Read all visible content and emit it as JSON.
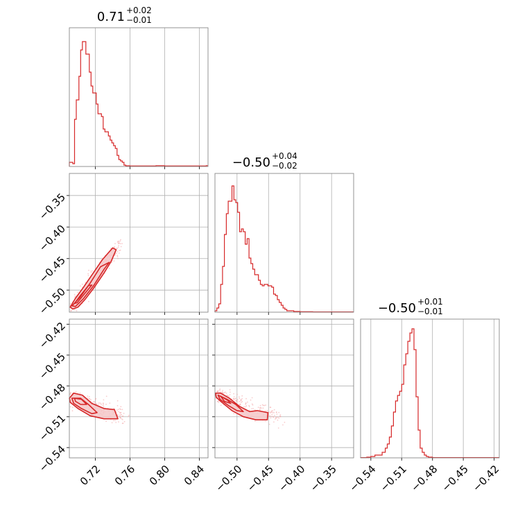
{
  "colors": {
    "accent": "#d62728",
    "fill": "#f4c7c8",
    "scatter": "#f2a3a4",
    "grid": "#b0b0b0",
    "frame": "#888888"
  },
  "chart_data": {
    "type": "corner",
    "parameters": [
      {
        "median": "0.71",
        "plus": "+0.02",
        "minus": "−0.01",
        "range": [
          0.69,
          0.85
        ]
      },
      {
        "median": "−0.50",
        "plus": "+0.04",
        "minus": "−0.02",
        "range": [
          -0.535,
          -0.315
        ]
      },
      {
        "median": "−0.50",
        "plus": "+0.01",
        "minus": "−0.01",
        "range": [
          -0.55,
          -0.415
        ]
      }
    ],
    "ticks": {
      "p0": [
        "0.72",
        "0.76",
        "0.80",
        "0.84"
      ],
      "p1": [
        "−0.50",
        "−0.45",
        "−0.40",
        "−0.35"
      ],
      "p2": [
        "−0.54",
        "−0.51",
        "−0.48",
        "−0.45",
        "−0.42"
      ]
    },
    "tick_values": {
      "p0": [
        0.72,
        0.76,
        0.8,
        0.84
      ],
      "p1": [
        -0.5,
        -0.45,
        -0.4,
        -0.35
      ],
      "p2": [
        -0.54,
        -0.51,
        -0.48,
        -0.45,
        -0.42
      ]
    },
    "histograms": {
      "p0": [
        [
          0.69,
          0.03
        ],
        [
          0.694,
          0.02
        ],
        [
          0.696,
          0.34
        ],
        [
          0.698,
          0.48
        ],
        [
          0.701,
          0.65
        ],
        [
          0.703,
          0.84
        ],
        [
          0.705,
          0.9
        ],
        [
          0.707,
          0.9
        ],
        [
          0.709,
          0.81
        ],
        [
          0.711,
          0.81
        ],
        [
          0.713,
          0.68
        ],
        [
          0.715,
          0.58
        ],
        [
          0.717,
          0.53
        ],
        [
          0.719,
          0.53
        ],
        [
          0.721,
          0.45
        ],
        [
          0.723,
          0.38
        ],
        [
          0.725,
          0.38
        ],
        [
          0.727,
          0.36
        ],
        [
          0.729,
          0.27
        ],
        [
          0.731,
          0.25
        ],
        [
          0.733,
          0.25
        ],
        [
          0.735,
          0.22
        ],
        [
          0.737,
          0.19
        ],
        [
          0.739,
          0.17
        ],
        [
          0.741,
          0.15
        ],
        [
          0.743,
          0.13
        ],
        [
          0.745,
          0.08
        ],
        [
          0.747,
          0.05
        ],
        [
          0.749,
          0.04
        ],
        [
          0.751,
          0.03
        ],
        [
          0.753,
          0.01
        ],
        [
          0.755,
          0.005
        ],
        [
          0.76,
          0.004
        ],
        [
          0.77,
          0.004
        ],
        [
          0.78,
          0.004
        ],
        [
          0.79,
          0.006
        ],
        [
          0.8,
          0.004
        ],
        [
          0.81,
          0.004
        ],
        [
          0.82,
          0.004
        ],
        [
          0.83,
          0.004
        ],
        [
          0.84,
          0.004
        ],
        [
          0.848,
          0.006
        ]
      ],
      "p1": [
        [
          -0.535,
          0.01
        ],
        [
          -0.532,
          0.03
        ],
        [
          -0.529,
          0.06
        ],
        [
          -0.526,
          0.2
        ],
        [
          -0.523,
          0.33
        ],
        [
          -0.52,
          0.56
        ],
        [
          -0.517,
          0.71
        ],
        [
          -0.514,
          0.8
        ],
        [
          -0.511,
          0.8
        ],
        [
          -0.508,
          0.91
        ],
        [
          -0.505,
          0.81
        ],
        [
          -0.502,
          0.79
        ],
        [
          -0.499,
          0.72
        ],
        [
          -0.496,
          0.58
        ],
        [
          -0.493,
          0.6
        ],
        [
          -0.49,
          0.58
        ],
        [
          -0.487,
          0.49
        ],
        [
          -0.484,
          0.53
        ],
        [
          -0.481,
          0.39
        ],
        [
          -0.478,
          0.35
        ],
        [
          -0.475,
          0.31
        ],
        [
          -0.472,
          0.27
        ],
        [
          -0.469,
          0.27
        ],
        [
          -0.466,
          0.23
        ],
        [
          -0.463,
          0.2
        ],
        [
          -0.46,
          0.19
        ],
        [
          -0.457,
          0.2
        ],
        [
          -0.454,
          0.2
        ],
        [
          -0.451,
          0.19
        ],
        [
          -0.448,
          0.19
        ],
        [
          -0.445,
          0.18
        ],
        [
          -0.442,
          0.13
        ],
        [
          -0.439,
          0.12
        ],
        [
          -0.436,
          0.09
        ],
        [
          -0.433,
          0.07
        ],
        [
          -0.43,
          0.05
        ],
        [
          -0.427,
          0.03
        ],
        [
          -0.424,
          0.02
        ],
        [
          -0.421,
          0.01
        ],
        [
          -0.418,
          0.01
        ],
        [
          -0.41,
          0.005
        ],
        [
          -0.4,
          0.003
        ],
        [
          -0.38,
          0.002
        ],
        [
          -0.35,
          0.002
        ],
        [
          -0.32,
          0.002
        ]
      ],
      "p2": [
        [
          -0.55,
          0.002
        ],
        [
          -0.544,
          0.005
        ],
        [
          -0.54,
          0.01
        ],
        [
          -0.536,
          0.02
        ],
        [
          -0.532,
          0.02
        ],
        [
          -0.529,
          0.04
        ],
        [
          -0.526,
          0.07
        ],
        [
          -0.524,
          0.1
        ],
        [
          -0.522,
          0.15
        ],
        [
          -0.52,
          0.23
        ],
        [
          -0.518,
          0.33
        ],
        [
          -0.516,
          0.41
        ],
        [
          -0.514,
          0.45
        ],
        [
          -0.512,
          0.48
        ],
        [
          -0.51,
          0.53
        ],
        [
          -0.508,
          0.67
        ],
        [
          -0.506,
          0.75
        ],
        [
          -0.504,
          0.84
        ],
        [
          -0.502,
          0.9
        ],
        [
          -0.5,
          0.93
        ],
        [
          -0.498,
          0.78
        ],
        [
          -0.496,
          0.44
        ],
        [
          -0.494,
          0.2
        ],
        [
          -0.492,
          0.07
        ],
        [
          -0.49,
          0.04
        ],
        [
          -0.488,
          0.02
        ],
        [
          -0.486,
          0.01
        ],
        [
          -0.484,
          0.005
        ],
        [
          -0.48,
          0.002
        ],
        [
          -0.47,
          0.002
        ],
        [
          -0.45,
          0.002
        ],
        [
          -0.416,
          0.002
        ]
      ]
    },
    "contours": {
      "p1_p0": [
        [
          [
            0.694,
            -0.53
          ],
          [
            0.7,
            -0.527
          ],
          [
            0.708,
            -0.515
          ],
          [
            0.718,
            -0.497
          ],
          [
            0.73,
            -0.473
          ],
          [
            0.738,
            -0.455
          ],
          [
            0.744,
            -0.436
          ],
          [
            0.74,
            -0.433
          ],
          [
            0.728,
            -0.452
          ],
          [
            0.716,
            -0.476
          ],
          [
            0.705,
            -0.498
          ],
          [
            0.697,
            -0.513
          ],
          [
            0.691,
            -0.527
          ]
        ],
        [
          [
            0.697,
            -0.526
          ],
          [
            0.706,
            -0.514
          ],
          [
            0.718,
            -0.493
          ],
          [
            0.73,
            -0.467
          ],
          [
            0.736,
            -0.456
          ],
          [
            0.726,
            -0.463
          ],
          [
            0.714,
            -0.489
          ],
          [
            0.702,
            -0.512
          ],
          [
            0.693,
            -0.525
          ]
        ],
        [
          [
            0.699,
            -0.52
          ],
          [
            0.708,
            -0.505
          ],
          [
            0.716,
            -0.492
          ],
          [
            0.712,
            -0.493
          ],
          [
            0.703,
            -0.508
          ],
          [
            0.696,
            -0.521
          ]
        ]
      ],
      "p2_p0": [
        [
          [
            0.69,
            -0.492
          ],
          [
            0.695,
            -0.487
          ],
          [
            0.705,
            -0.489
          ],
          [
            0.716,
            -0.497
          ],
          [
            0.73,
            -0.502
          ],
          [
            0.742,
            -0.503
          ],
          [
            0.746,
            -0.512
          ],
          [
            0.73,
            -0.512
          ],
          [
            0.714,
            -0.509
          ],
          [
            0.7,
            -0.502
          ],
          [
            0.691,
            -0.496
          ]
        ],
        [
          [
            0.693,
            -0.492
          ],
          [
            0.703,
            -0.492
          ],
          [
            0.712,
            -0.498
          ],
          [
            0.722,
            -0.506
          ],
          [
            0.716,
            -0.507
          ],
          [
            0.704,
            -0.502
          ],
          [
            0.695,
            -0.497
          ]
        ],
        [
          [
            0.696,
            -0.492
          ],
          [
            0.704,
            -0.493
          ],
          [
            0.71,
            -0.498
          ],
          [
            0.703,
            -0.498
          ],
          [
            0.697,
            -0.495
          ]
        ]
      ],
      "p2_p1": [
        [
          [
            -0.534,
            -0.487
          ],
          [
            -0.526,
            -0.487
          ],
          [
            -0.512,
            -0.492
          ],
          [
            -0.496,
            -0.5
          ],
          [
            -0.48,
            -0.505
          ],
          [
            -0.468,
            -0.504
          ],
          [
            -0.451,
            -0.506
          ],
          [
            -0.452,
            -0.513
          ],
          [
            -0.47,
            -0.513
          ],
          [
            -0.49,
            -0.51
          ],
          [
            -0.508,
            -0.504
          ],
          [
            -0.524,
            -0.496
          ],
          [
            -0.533,
            -0.491
          ]
        ],
        [
          [
            -0.53,
            -0.489
          ],
          [
            -0.516,
            -0.493
          ],
          [
            -0.502,
            -0.498
          ],
          [
            -0.49,
            -0.505
          ],
          [
            -0.5,
            -0.504
          ],
          [
            -0.514,
            -0.499
          ],
          [
            -0.527,
            -0.493
          ]
        ],
        [
          [
            -0.526,
            -0.49
          ],
          [
            -0.515,
            -0.494
          ],
          [
            -0.51,
            -0.497
          ],
          [
            -0.52,
            -0.495
          ]
        ]
      ]
    }
  }
}
